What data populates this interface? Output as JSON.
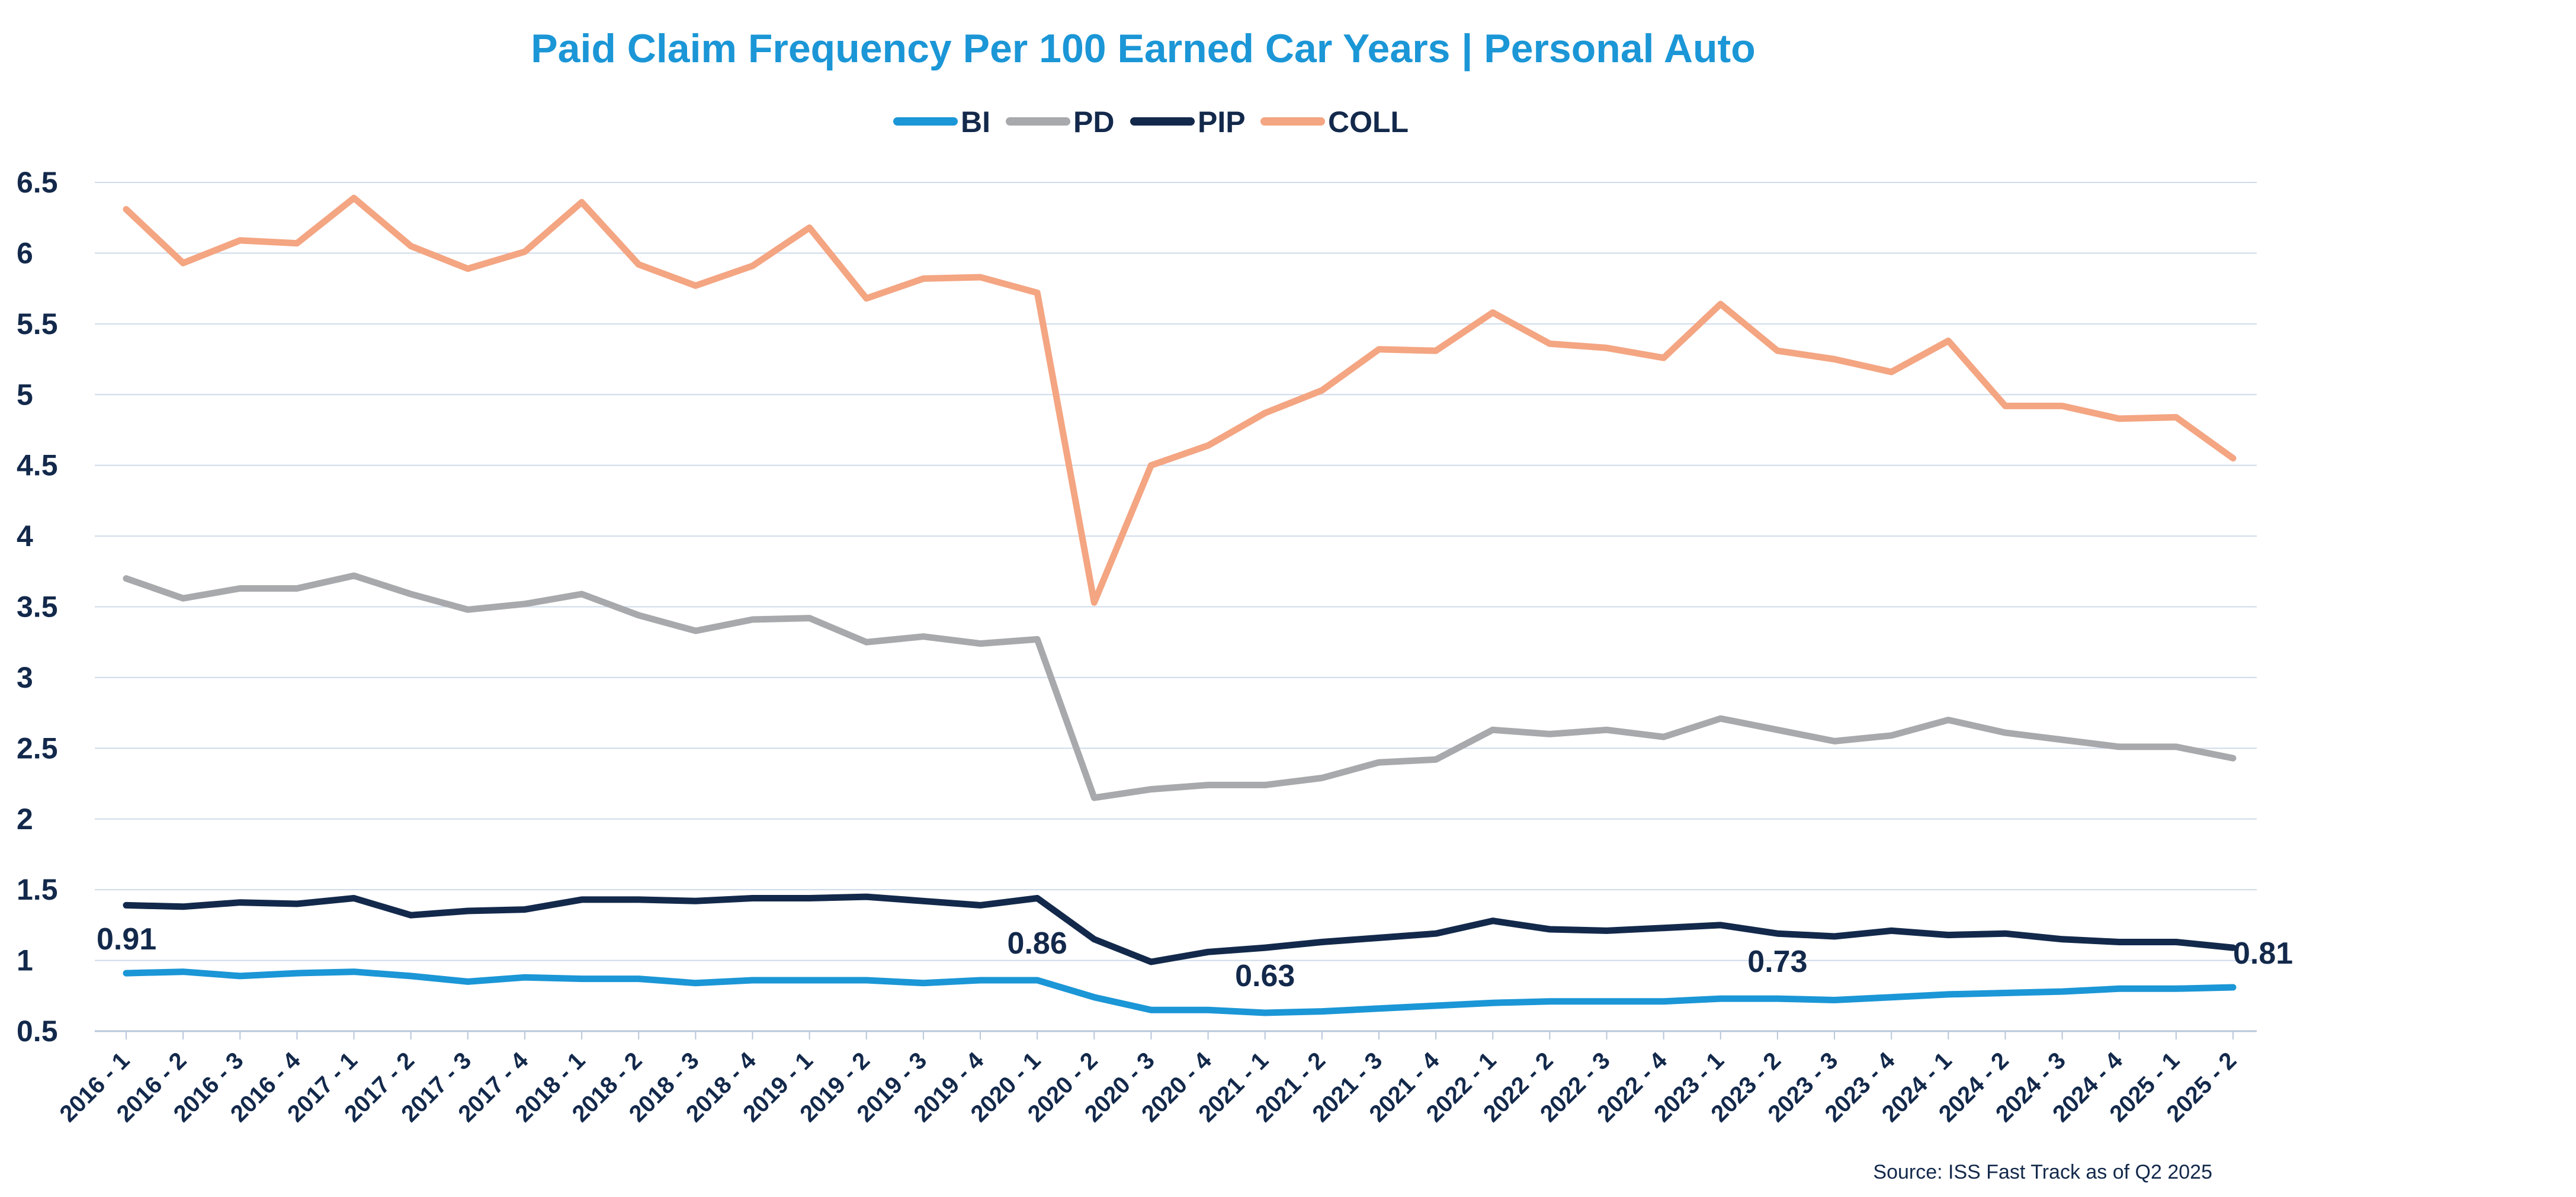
{
  "chart_data": {
    "type": "line",
    "title": "Paid Claim Frequency Per 100 Earned Car Years | Personal Auto",
    "xlabel": "",
    "ylabel": "",
    "ylim": [
      0.5,
      6.5
    ],
    "ytick_step": 0.5,
    "ytick_labels": [
      "0.5",
      "1",
      "1.5",
      "2",
      "2.5",
      "3",
      "3.5",
      "4",
      "4.5",
      "5",
      "5.5",
      "6",
      "6.5"
    ],
    "grid": true,
    "legend_position": "top-center",
    "categories": [
      "2016 - 1",
      "2016 - 2",
      "2016 - 3",
      "2016 - 4",
      "2017 - 1",
      "2017 - 2",
      "2017 - 3",
      "2017 - 4",
      "2018 - 1",
      "2018 - 2",
      "2018 - 3",
      "2018 - 4",
      "2019 - 1",
      "2019 - 2",
      "2019 - 3",
      "2019 - 4",
      "2020 - 1",
      "2020 - 2",
      "2020 - 3",
      "2020 - 4",
      "2021 - 1",
      "2021 - 2",
      "2021 - 3",
      "2021 - 4",
      "2022 - 1",
      "2022 - 2",
      "2022 - 3",
      "2022 - 4",
      "2023 - 1",
      "2023 - 2",
      "2023 - 3",
      "2023 - 4",
      "2024 - 1",
      "2024 - 2",
      "2024 - 3",
      "2024 - 4",
      "2025 - 1",
      "2025 - 2"
    ],
    "series": [
      {
        "name": "BI",
        "color": "#1b96d6",
        "values": [
          0.91,
          0.92,
          0.89,
          0.91,
          0.92,
          0.89,
          0.85,
          0.88,
          0.87,
          0.87,
          0.84,
          0.86,
          0.86,
          0.86,
          0.84,
          0.86,
          0.86,
          0.74,
          0.65,
          0.65,
          0.63,
          0.64,
          0.66,
          0.68,
          0.7,
          0.71,
          0.71,
          0.71,
          0.73,
          0.73,
          0.72,
          0.74,
          0.76,
          0.77,
          0.78,
          0.8,
          0.8,
          0.81
        ]
      },
      {
        "name": "PD",
        "color": "#a7a9ac",
        "values": [
          3.7,
          3.56,
          3.63,
          3.63,
          3.72,
          3.59,
          3.48,
          3.52,
          3.59,
          3.44,
          3.33,
          3.41,
          3.42,
          3.25,
          3.29,
          3.24,
          3.27,
          2.15,
          2.21,
          2.24,
          2.24,
          2.29,
          2.4,
          2.42,
          2.63,
          2.6,
          2.63,
          2.58,
          2.71,
          2.63,
          2.55,
          2.59,
          2.7,
          2.61,
          2.56,
          2.51,
          2.51,
          2.43
        ]
      },
      {
        "name": "PIP",
        "color": "#13294b",
        "values": [
          1.39,
          1.38,
          1.41,
          1.4,
          1.44,
          1.32,
          1.35,
          1.36,
          1.43,
          1.43,
          1.42,
          1.44,
          1.44,
          1.45,
          1.42,
          1.39,
          1.44,
          1.15,
          0.99,
          1.06,
          1.09,
          1.13,
          1.16,
          1.19,
          1.28,
          1.22,
          1.21,
          1.23,
          1.25,
          1.19,
          1.17,
          1.21,
          1.18,
          1.19,
          1.15,
          1.13,
          1.13,
          1.09
        ]
      },
      {
        "name": "COLL",
        "color": "#f4a582",
        "values": [
          6.31,
          5.93,
          6.09,
          6.07,
          6.39,
          6.05,
          5.89,
          6.01,
          6.36,
          5.92,
          5.77,
          5.91,
          6.18,
          5.68,
          5.82,
          5.83,
          5.72,
          3.53,
          4.5,
          4.64,
          4.87,
          5.03,
          5.32,
          5.31,
          5.58,
          5.36,
          5.33,
          5.26,
          5.64,
          5.31,
          5.25,
          5.16,
          5.38,
          4.92,
          4.92,
          4.83,
          4.84,
          4.55
        ]
      }
    ],
    "annotations": [
      {
        "series": "BI",
        "index": 0,
        "text": "0.91"
      },
      {
        "series": "BI",
        "index": 16,
        "text": "0.86"
      },
      {
        "series": "BI",
        "index": 20,
        "text": "0.63"
      },
      {
        "series": "BI",
        "index": 29,
        "text": "0.73"
      },
      {
        "series": "BI",
        "index": 37,
        "text": "0.81"
      }
    ],
    "source": "Source:  ISS Fast Track as of Q2 2025"
  },
  "colors": {
    "title": "#1b96d6",
    "axis_text": "#13294b",
    "grid": "#cfdbea",
    "source_text": "#13294b"
  }
}
